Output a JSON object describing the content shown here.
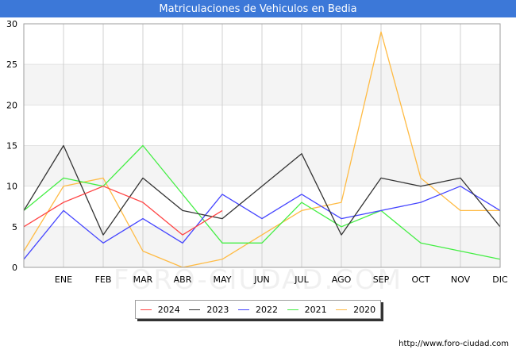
{
  "chart_data": {
    "type": "line",
    "title": "Matriculaciones de Vehiculos en Bedia",
    "categories": [
      "",
      "ENE",
      "FEB",
      "MAR",
      "ABR",
      "MAY",
      "JUN",
      "JUL",
      "AGO",
      "SEP",
      "OCT",
      "NOV",
      "DIC"
    ],
    "ylim": [
      0,
      30
    ],
    "yticks": [
      0,
      5,
      10,
      15,
      20,
      25,
      30
    ],
    "xlabel": "",
    "ylabel": "",
    "series": [
      {
        "name": "2024",
        "color": "#ff4444",
        "values": [
          5,
          8,
          10,
          8,
          4,
          7,
          null,
          null,
          null,
          null,
          null,
          null,
          null
        ]
      },
      {
        "name": "2023",
        "color": "#333333",
        "values": [
          7,
          15,
          4,
          11,
          7,
          6,
          10,
          14,
          4,
          11,
          10,
          11,
          5
        ]
      },
      {
        "name": "2022",
        "color": "#4444ff",
        "values": [
          1,
          7,
          3,
          6,
          3,
          9,
          6,
          9,
          6,
          7,
          8,
          10,
          7
        ]
      },
      {
        "name": "2021",
        "color": "#44ee44",
        "values": [
          7,
          11,
          10,
          15,
          9,
          3,
          3,
          8,
          5,
          7,
          3,
          2,
          1
        ]
      },
      {
        "name": "2020",
        "color": "#ffbb44",
        "values": [
          2,
          10,
          11,
          2,
          0,
          1,
          4,
          7,
          8,
          29,
          11,
          7,
          7
        ]
      }
    ]
  },
  "watermark": "FORO-CIUDAD.COM",
  "credit": "http://www.foro-ciudad.com"
}
